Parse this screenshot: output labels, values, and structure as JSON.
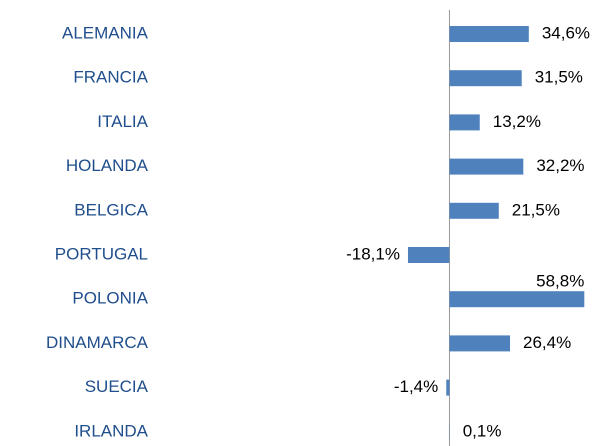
{
  "chart_data": {
    "type": "barh",
    "categories": [
      "ALEMANIA",
      "FRANCIA",
      "ITALIA",
      "HOLANDA",
      "BELGICA",
      "PORTUGAL",
      "POLONIA",
      "DINAMARCA",
      "SUECIA",
      "IRLANDA"
    ],
    "values": [
      34.6,
      31.5,
      13.2,
      32.2,
      21.5,
      -18.1,
      58.8,
      26.4,
      -1.4,
      0.1
    ],
    "value_labels": [
      "34,6%",
      "31,5%",
      "13,2%",
      "32,2%",
      "21,5%",
      "-18,1%",
      "58,8%",
      "26,4%",
      "-1,4%",
      "0,1%"
    ],
    "color": "#4f81bd",
    "xlim": [
      -196,
      70
    ]
  }
}
